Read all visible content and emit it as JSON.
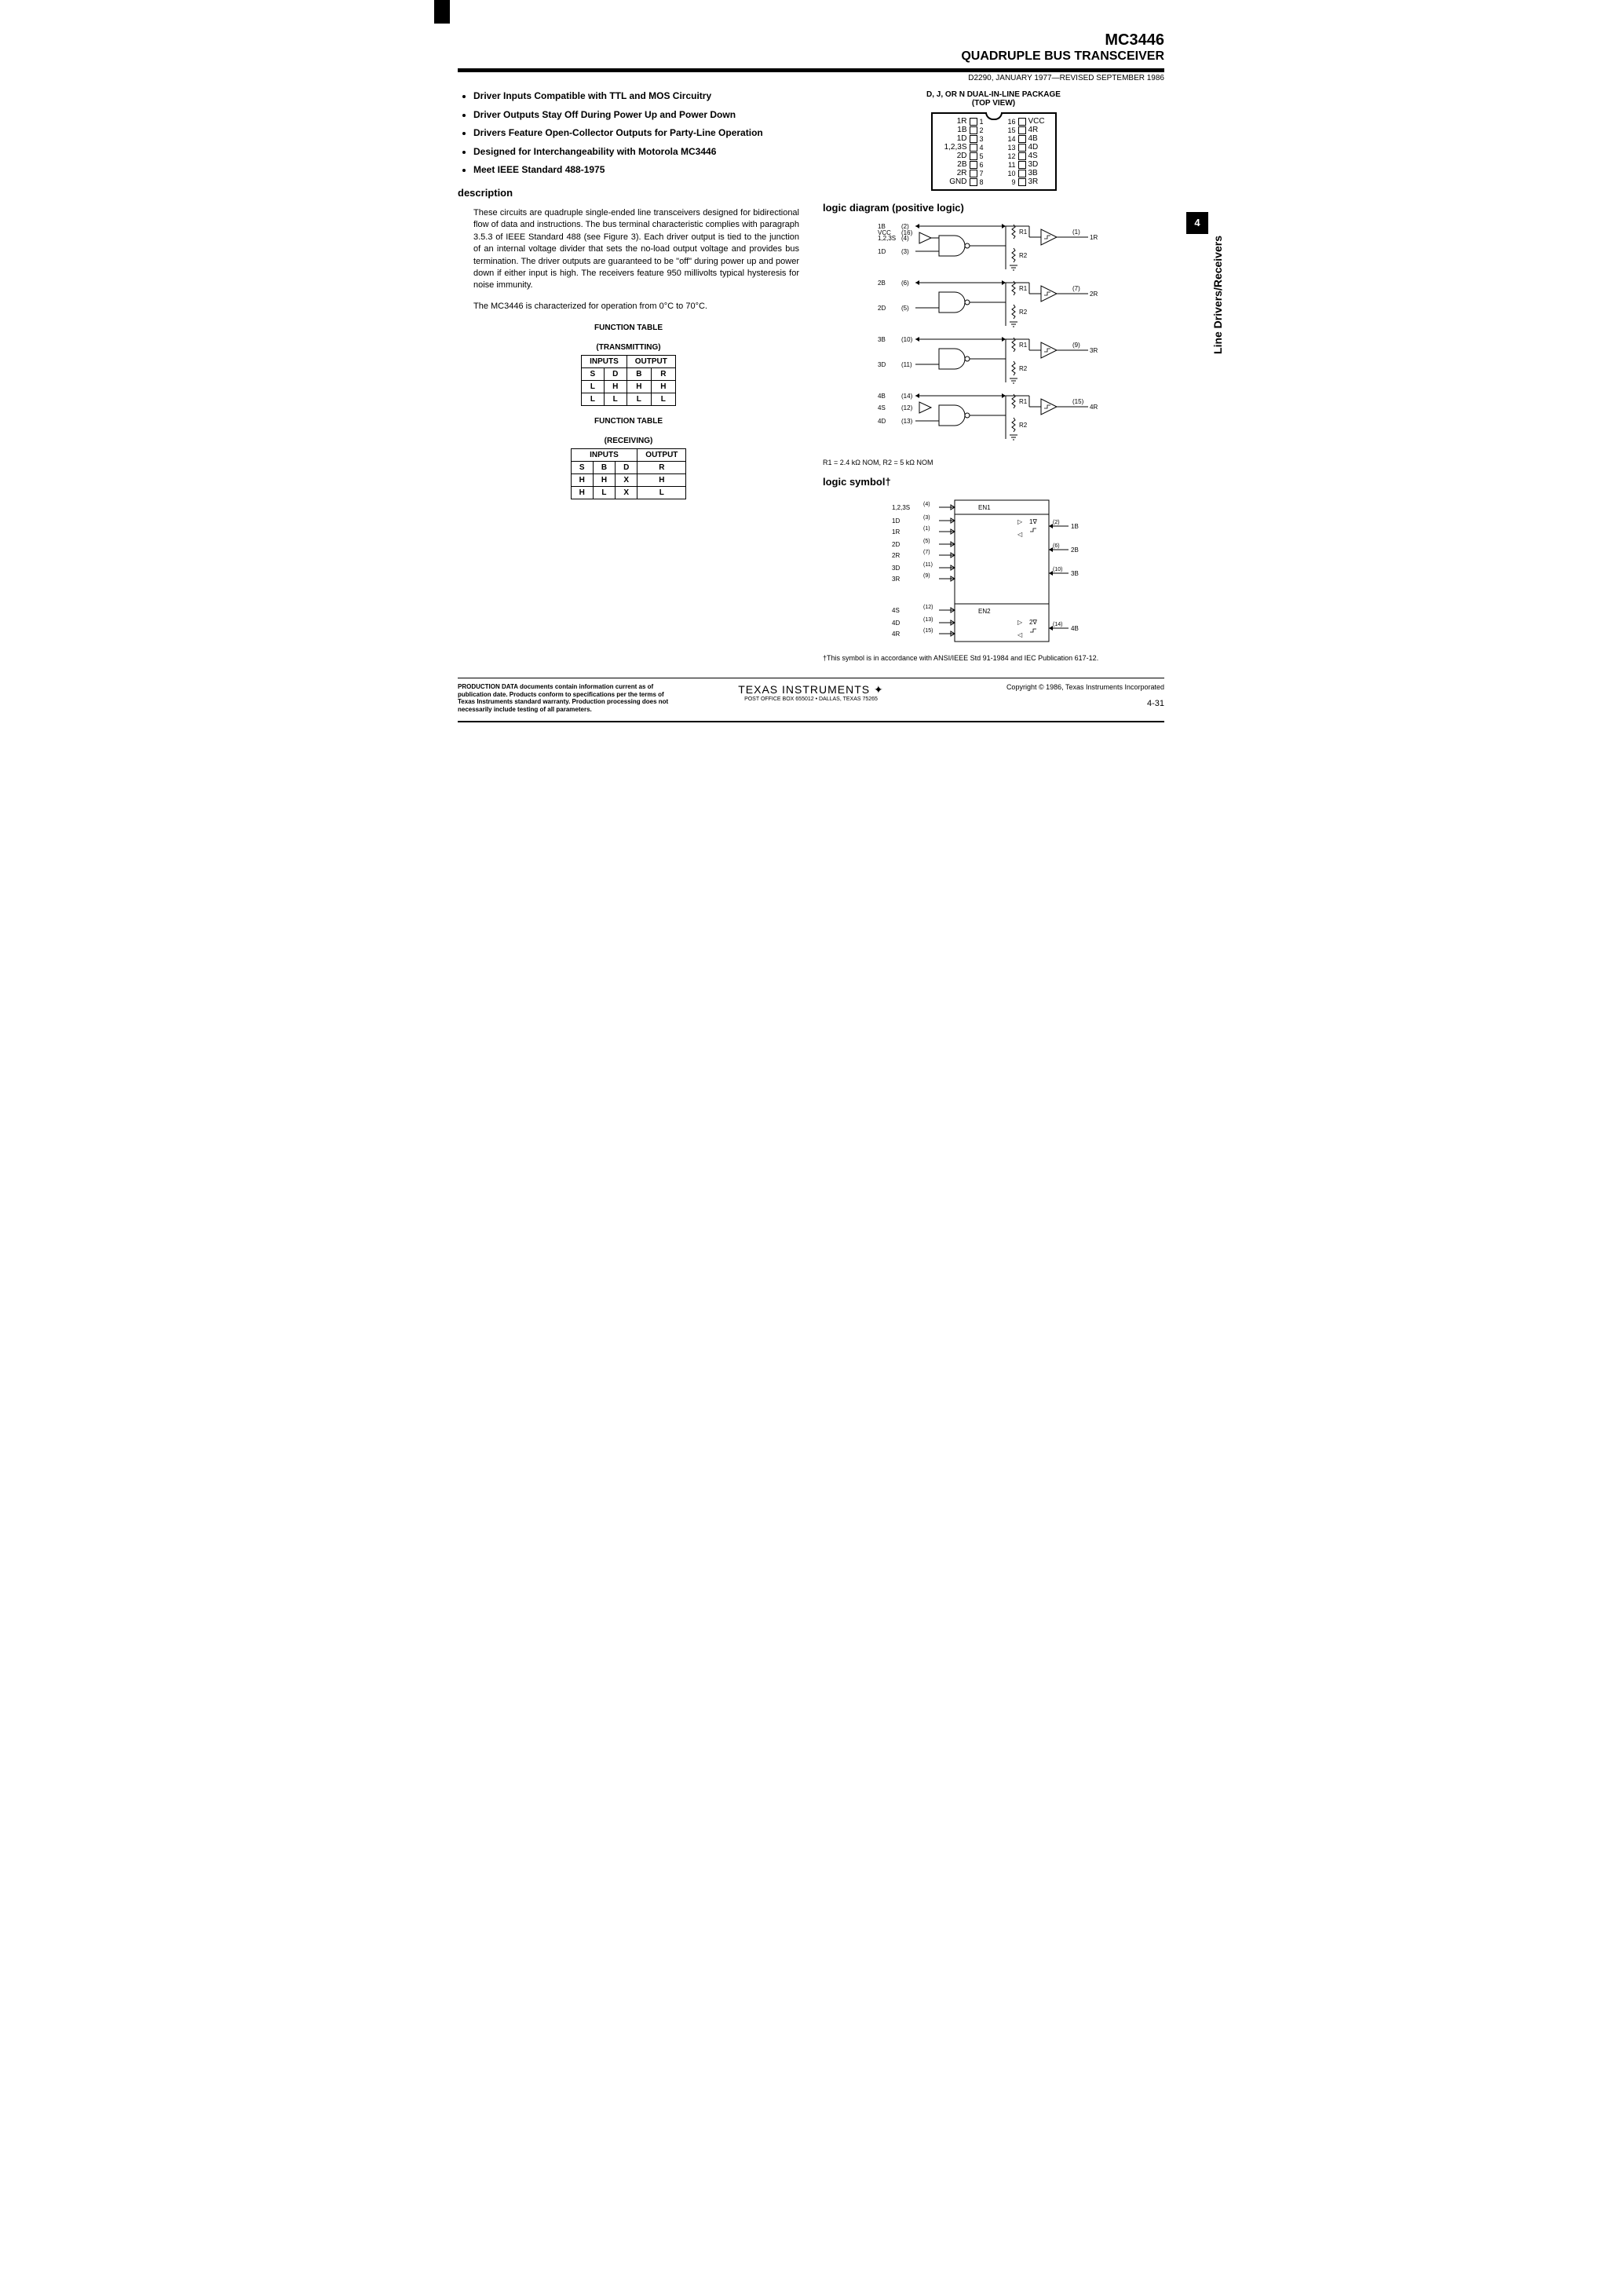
{
  "header": {
    "part_number": "MC3446",
    "title": "QUADRUPLE BUS TRANSCEIVER",
    "doc_info": "D2290, JANUARY 1977—REVISED SEPTEMBER 1986"
  },
  "features": [
    "Driver Inputs Compatible with TTL and MOS Circuitry",
    "Driver Outputs Stay Off During Power Up and Power Down",
    "Drivers Feature Open-Collector Outputs for Party-Line Operation",
    "Designed for Interchangeability with Motorola MC3446",
    "Meet IEEE Standard 488-1975"
  ],
  "description_heading": "description",
  "description": {
    "p1": "These circuits are quadruple single-ended line transceivers designed for bidirectional flow of data and instructions. The bus terminal characteristic complies with paragraph 3.5.3 of IEEE Standard 488 (see Figure 3). Each driver output is tied to the junction of an internal voltage divider that sets the no-load output voltage and provides bus termination. The driver outputs are guaranteed to be \"off\" during power up and power down if either input is high. The receivers feature 950 millivolts typical hysteresis for noise immunity.",
    "p2": "The MC3446 is characterized for operation from 0°C to 70°C."
  },
  "function_tables": {
    "transmitting": {
      "title": "FUNCTION TABLE",
      "subtitle": "(TRANSMITTING)",
      "headers_group": [
        "INPUTS",
        "OUTPUT"
      ],
      "headers": [
        "S",
        "D",
        "B",
        "R"
      ],
      "rows": [
        [
          "L",
          "H",
          "H",
          "H"
        ],
        [
          "L",
          "L",
          "L",
          "L"
        ]
      ]
    },
    "receiving": {
      "title": "FUNCTION TABLE",
      "subtitle": "(RECEIVING)",
      "headers_group": [
        "INPUTS",
        "OUTPUT"
      ],
      "headers": [
        "S",
        "B",
        "D",
        "R"
      ],
      "rows": [
        [
          "H",
          "H",
          "X",
          "H"
        ],
        [
          "H",
          "L",
          "X",
          "L"
        ]
      ]
    }
  },
  "package": {
    "title1": "D, J, OR N DUAL-IN-LINE PACKAGE",
    "title2": "(TOP VIEW)",
    "pins_left": [
      {
        "num": "1",
        "label": "1R"
      },
      {
        "num": "2",
        "label": "1B"
      },
      {
        "num": "3",
        "label": "1D"
      },
      {
        "num": "4",
        "label": "1,2,3S"
      },
      {
        "num": "5",
        "label": "2D"
      },
      {
        "num": "6",
        "label": "2B"
      },
      {
        "num": "7",
        "label": "2R"
      },
      {
        "num": "8",
        "label": "GND"
      }
    ],
    "pins_right": [
      {
        "num": "16",
        "label": "VCC"
      },
      {
        "num": "15",
        "label": "4R"
      },
      {
        "num": "14",
        "label": "4B"
      },
      {
        "num": "13",
        "label": "4D"
      },
      {
        "num": "12",
        "label": "4S"
      },
      {
        "num": "11",
        "label": "3D"
      },
      {
        "num": "10",
        "label": "3B"
      },
      {
        "num": "9",
        "label": "3R"
      }
    ]
  },
  "logic_diagram": {
    "heading": "logic diagram (positive logic)",
    "signals_left": [
      {
        "label": "1B",
        "pin": "(2)"
      },
      {
        "label": "VCC",
        "pin": "(16)"
      },
      {
        "label": "1,2,3S",
        "pin": "(4)"
      },
      {
        "label": "1D",
        "pin": "(3)"
      },
      {
        "label": "2B",
        "pin": "(6)"
      },
      {
        "label": "2D",
        "pin": "(5)"
      },
      {
        "label": "3B",
        "pin": "(10)"
      },
      {
        "label": "3D",
        "pin": "(11)"
      },
      {
        "label": "4B",
        "pin": "(14)"
      },
      {
        "label": "4S",
        "pin": "(12)"
      },
      {
        "label": "4D",
        "pin": "(13)"
      }
    ],
    "signals_right": [
      {
        "label": "1R",
        "pin": "(1)"
      },
      {
        "label": "2R",
        "pin": "(7)"
      },
      {
        "label": "3R",
        "pin": "(9)"
      },
      {
        "label": "4R",
        "pin": "(15)"
      }
    ],
    "resistors": [
      "R1",
      "R2"
    ],
    "r_note": "R1 = 2.4 kΩ NOM, R2 = 5 kΩ NOM"
  },
  "logic_symbol": {
    "heading": "logic symbol†",
    "left": [
      {
        "label": "1,2,3S",
        "pin": "(4)"
      },
      {
        "label": "1D",
        "pin": "(3)"
      },
      {
        "label": "1R",
        "pin": "(1)"
      },
      {
        "label": "2D",
        "pin": "(5)"
      },
      {
        "label": "2R",
        "pin": "(7)"
      },
      {
        "label": "3D",
        "pin": "(11)"
      },
      {
        "label": "3R",
        "pin": "(9)"
      },
      {
        "label": "4S",
        "pin": "(12)"
      },
      {
        "label": "4D",
        "pin": "(13)"
      },
      {
        "label": "4R",
        "pin": "(15)"
      }
    ],
    "right": [
      {
        "label": "1B",
        "pin": "(2)"
      },
      {
        "label": "2B",
        "pin": "(6)"
      },
      {
        "label": "3B",
        "pin": "(10)"
      },
      {
        "label": "4B",
        "pin": "(14)"
      }
    ],
    "internal": [
      "EN1",
      "EN2",
      "1∇",
      "2∇"
    ],
    "footnote": "†This symbol is in accordance with ANSI/IEEE Std 91-1984 and IEC Publication 617-12."
  },
  "side_tab": {
    "number": "4",
    "text": "Line Drivers/Receivers"
  },
  "footer": {
    "production_data": "PRODUCTION DATA documents contain information current as of publication date. Products conform to specifications per the terms of Texas Instruments standard warranty. Production processing does not necessarily include testing of all parameters.",
    "company": "TEXAS INSTRUMENTS",
    "address": "POST OFFICE BOX 655012 • DALLAS, TEXAS 75265",
    "copyright": "Copyright © 1986, Texas Instruments Incorporated",
    "page_num": "4-31"
  }
}
